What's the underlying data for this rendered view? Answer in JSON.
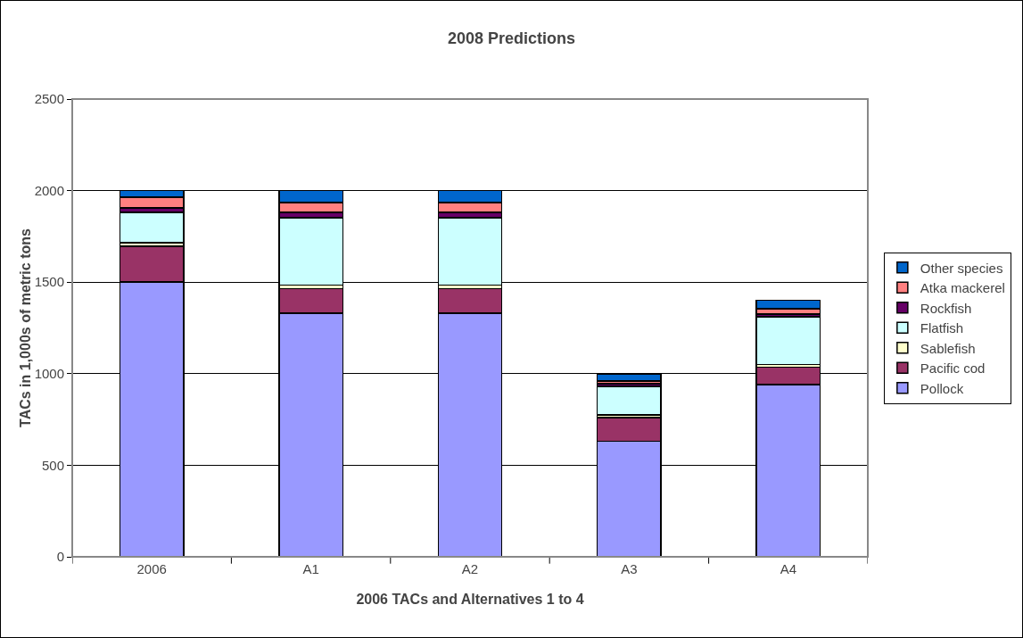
{
  "chart_data": {
    "type": "bar",
    "title": "2008 Predictions",
    "xlabel": "2006 TACs and Alternatives 1 to 4",
    "ylabel": "TACs in 1,000s of metric tons",
    "categories": [
      "2006",
      "A1",
      "A2",
      "A3",
      "A4"
    ],
    "stacked": true,
    "ylim": [
      0,
      2500
    ],
    "yticks": [
      0,
      500,
      1000,
      1500,
      2000,
      2500
    ],
    "grid": "y",
    "legend": "right",
    "series": [
      {
        "name": "Pollock",
        "color": "#9999ff",
        "values": [
          1500,
          1330,
          1330,
          630,
          940
        ]
      },
      {
        "name": "Pacific cod",
        "color": "#993366",
        "values": [
          195,
          135,
          135,
          130,
          95
        ]
      },
      {
        "name": "Sablefish",
        "color": "#ffffcc",
        "values": [
          20,
          20,
          20,
          15,
          15
        ]
      },
      {
        "name": "Flatfish",
        "color": "#ccffff",
        "values": [
          165,
          367,
          367,
          157,
          260
        ]
      },
      {
        "name": "Rockfish",
        "color": "#660066",
        "values": [
          25,
          30,
          30,
          13,
          15
        ]
      },
      {
        "name": "Atka mackerel",
        "color": "#ff8080",
        "values": [
          60,
          52,
          52,
          15,
          30
        ]
      },
      {
        "name": "Other species",
        "color": "#0066cc",
        "values": [
          35,
          66,
          66,
          40,
          45
        ]
      }
    ]
  }
}
